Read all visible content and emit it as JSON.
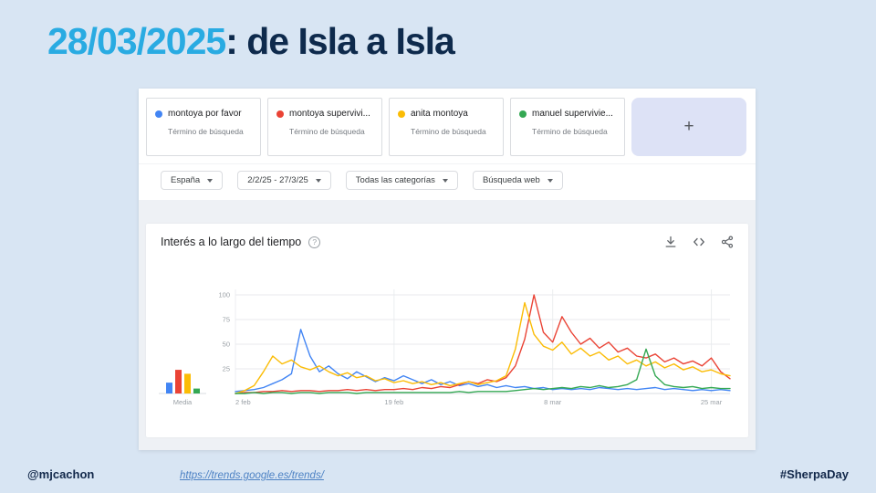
{
  "slide": {
    "title_date": "28/03/2025",
    "title_rest": ": de Isla a Isla",
    "footer_left": "@mjcachon",
    "footer_link": "https://trends.google.es/trends/",
    "footer_right": "#SherpaDay",
    "colors": {
      "background": "#d8e5f3",
      "accent_cyan": "#29abe2",
      "navy": "#0e2a4c"
    }
  },
  "trends": {
    "terms": [
      {
        "label": "montoya por favor",
        "sublabel": "Término de búsqueda",
        "color": "#4285f4"
      },
      {
        "label": "montoya supervivi...",
        "sublabel": "Término de búsqueda",
        "color": "#ea4335"
      },
      {
        "label": "anita montoya",
        "sublabel": "Término de búsqueda",
        "color": "#fbbc05"
      },
      {
        "label": "manuel supervivie...",
        "sublabel": "Término de búsqueda",
        "color": "#34a853"
      }
    ],
    "add_label": "+",
    "filters": [
      "España",
      "2/2/25 - 27/3/25",
      "Todas las categorías",
      "Búsqueda web"
    ],
    "chart_title": "Interés a lo largo del tiempo",
    "help_glyph": "?",
    "media_label": "Media",
    "icons": [
      "download-icon",
      "embed-icon",
      "share-icon"
    ]
  },
  "chart_data": {
    "type": "line",
    "title": "Interés a lo largo del tiempo",
    "xlabel": "",
    "ylabel": "",
    "ylim": [
      0,
      100
    ],
    "y_ticks": [
      25,
      50,
      75,
      100
    ],
    "grid": true,
    "x_count": 54,
    "x_tick_positions": [
      0,
      17,
      34,
      51
    ],
    "x_tick_labels": [
      "2 feb",
      "19 feb",
      "8 mar",
      "25 mar"
    ],
    "series": [
      {
        "name": "montoya por favor",
        "color": "#4285f4",
        "media": 11,
        "values": [
          2,
          3,
          4,
          6,
          10,
          14,
          20,
          65,
          38,
          22,
          28,
          20,
          15,
          22,
          17,
          12,
          16,
          13,
          18,
          14,
          10,
          14,
          9,
          12,
          8,
          10,
          7,
          9,
          6,
          8,
          6,
          7,
          5,
          6,
          4,
          5,
          4,
          5,
          4,
          6,
          5,
          4,
          5,
          4,
          5,
          6,
          4,
          5,
          4,
          3,
          4,
          3,
          4,
          3
        ]
      },
      {
        "name": "montoya supervivi...",
        "color": "#ea4335",
        "media": 24,
        "values": [
          0,
          1,
          1,
          2,
          2,
          3,
          2,
          3,
          3,
          2,
          3,
          3,
          4,
          3,
          4,
          3,
          4,
          4,
          5,
          4,
          6,
          5,
          7,
          6,
          9,
          12,
          10,
          14,
          12,
          16,
          28,
          55,
          100,
          62,
          52,
          78,
          62,
          50,
          56,
          46,
          52,
          42,
          46,
          38,
          36,
          40,
          32,
          36,
          30,
          33,
          28,
          36,
          22,
          15
        ]
      },
      {
        "name": "anita montoya",
        "color": "#fbbc05",
        "media": 20,
        "values": [
          0,
          3,
          8,
          22,
          38,
          30,
          34,
          27,
          24,
          28,
          22,
          18,
          21,
          16,
          18,
          13,
          15,
          11,
          13,
          10,
          12,
          9,
          11,
          8,
          10,
          12,
          9,
          11,
          13,
          18,
          45,
          92,
          60,
          48,
          44,
          52,
          40,
          46,
          38,
          42,
          34,
          38,
          30,
          34,
          28,
          32,
          26,
          30,
          24,
          27,
          22,
          24,
          20,
          18
        ]
      },
      {
        "name": "manuel supervivie...",
        "color": "#34a853",
        "media": 5,
        "values": [
          0,
          0,
          1,
          0,
          1,
          1,
          0,
          1,
          1,
          0,
          1,
          1,
          1,
          0,
          1,
          1,
          1,
          1,
          1,
          1,
          1,
          1,
          1,
          1,
          2,
          1,
          2,
          2,
          2,
          2,
          3,
          4,
          5,
          4,
          5,
          6,
          5,
          7,
          6,
          8,
          6,
          7,
          9,
          14,
          45,
          18,
          9,
          7,
          6,
          7,
          5,
          6,
          5,
          5
        ]
      }
    ]
  }
}
